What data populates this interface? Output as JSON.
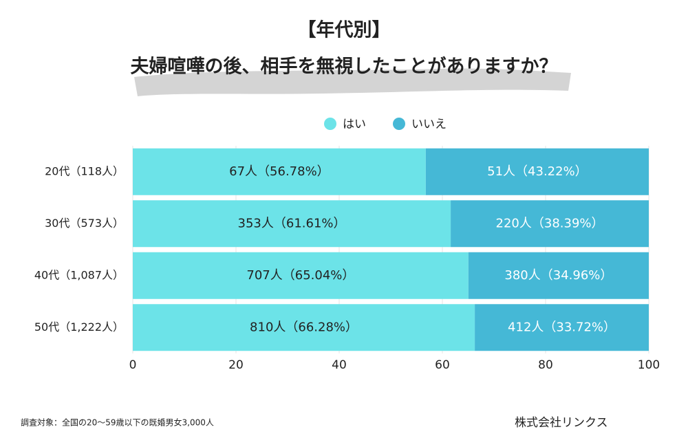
{
  "chart_data": {
    "type": "stacked-barh",
    "title": "【年代別】",
    "subtitle": "夫婦喧嘩の後、相手を無視したことがありますか？",
    "categories": [
      "20代（118人）",
      "30代（573人）",
      "40代（1,087人）",
      "50代（1,222人）"
    ],
    "series": [
      {
        "name": "はい",
        "color": "#6ce3e8",
        "values": [
          56.78,
          61.61,
          65.04,
          66.28
        ],
        "value_labels": [
          "67人（56.78%）",
          "353人（61.61%）",
          "707人（65.04%）",
          "810人（66.28%）"
        ]
      },
      {
        "name": "いいえ",
        "color": "#45b8d6",
        "values": [
          43.22,
          38.39,
          34.96,
          33.72
        ],
        "value_labels": [
          "51人（43.22%）",
          "220人（38.39%）",
          "380人（34.96%）",
          "412人（33.72%）"
        ]
      }
    ],
    "xlim": [
      0,
      100
    ],
    "xticks": [
      0,
      20,
      40,
      60,
      80,
      100
    ],
    "grid": true,
    "note": "調査対象：全国の20〜59歳以下の既婚男女3,000人",
    "source": "株式会社リンクス"
  }
}
